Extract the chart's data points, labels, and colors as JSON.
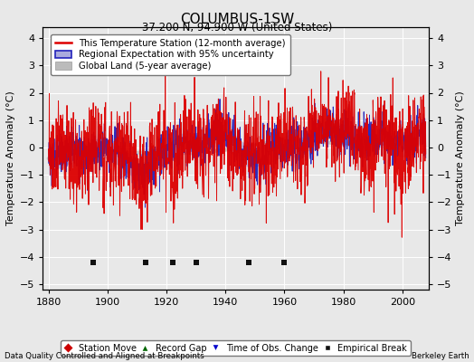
{
  "title": "COLUMBUS-1SW",
  "subtitle": "37.200 N, 94.900 W (United States)",
  "xlabel_left": "Data Quality Controlled and Aligned at Breakpoints",
  "xlabel_right": "Berkeley Earth",
  "ylabel": "Temperature Anomaly (°C)",
  "xlim": [
    1878,
    2009
  ],
  "ylim": [
    -5.2,
    4.4
  ],
  "yticks": [
    -5,
    -4,
    -3,
    -2,
    -1,
    0,
    1,
    2,
    3,
    4
  ],
  "xticks": [
    1880,
    1900,
    1920,
    1940,
    1960,
    1980,
    2000
  ],
  "bg_color": "#e8e8e8",
  "plot_bg": "#e8e8e8",
  "grid_color": "#ffffff",
  "station_color": "#dd0000",
  "regional_color": "#2222bb",
  "regional_fill": "#aaaadd",
  "global_color": "#bbbbbb",
  "marker_colors": {
    "station_move": "#cc0000",
    "record_gap": "#006600",
    "time_obs": "#0000cc",
    "empirical_break": "#111111"
  },
  "empirical_breaks_x": [
    1895,
    1913,
    1922,
    1930,
    1948,
    1960
  ],
  "years_start": 1880,
  "years_end": 2007,
  "seed": 123
}
